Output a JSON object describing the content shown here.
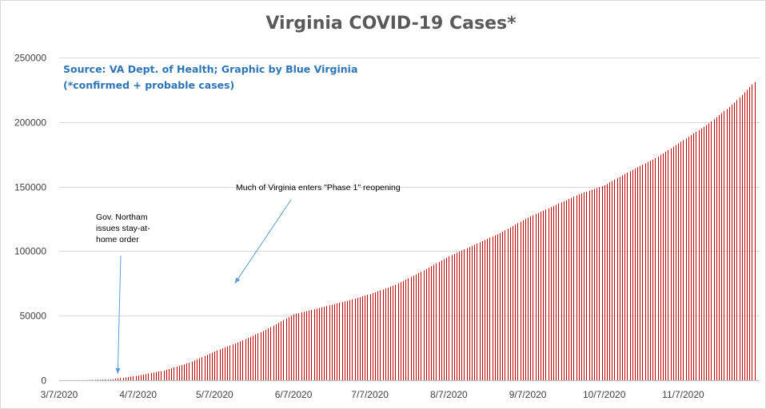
{
  "chart_data": {
    "type": "bar",
    "title": "Virginia COVID-19 Cases*",
    "source_line": "Source: VA Dept. of Health; Graphic by Blue Virginia",
    "note_line": "(*confirmed + probable cases)",
    "xlabel": "",
    "ylabel": "",
    "ylim": [
      0,
      250000
    ],
    "y_ticks": [
      "0",
      "50000",
      "100000",
      "150000",
      "200000",
      "250000"
    ],
    "y_tick_values": [
      0,
      50000,
      100000,
      150000,
      200000,
      250000
    ],
    "x_start": "2020-03-07",
    "x_end": "2020-12-07",
    "x_ticks": [
      "3/7/2020",
      "4/7/2020",
      "5/7/2020",
      "6/7/2020",
      "7/7/2020",
      "8/7/2020",
      "9/7/2020",
      "10/7/2020",
      "11/7/2020"
    ],
    "x_tick_dates": [
      "2020-03-07",
      "2020-04-07",
      "2020-05-07",
      "2020-06-07",
      "2020-07-07",
      "2020-08-07",
      "2020-09-07",
      "2020-10-07",
      "2020-11-07"
    ],
    "grid": true,
    "bar_color": "#c00000",
    "series_points": [
      {
        "date": "2020-03-07",
        "value": 0
      },
      {
        "date": "2020-03-17",
        "value": 100
      },
      {
        "date": "2020-03-27",
        "value": 600
      },
      {
        "date": "2020-04-07",
        "value": 3600
      },
      {
        "date": "2020-04-17",
        "value": 7500
      },
      {
        "date": "2020-04-27",
        "value": 13500
      },
      {
        "date": "2020-05-07",
        "value": 22300
      },
      {
        "date": "2020-05-17",
        "value": 30000
      },
      {
        "date": "2020-05-27",
        "value": 39000
      },
      {
        "date": "2020-06-07",
        "value": 51000
      },
      {
        "date": "2020-06-17",
        "value": 56000
      },
      {
        "date": "2020-06-27",
        "value": 61000
      },
      {
        "date": "2020-07-07",
        "value": 66700
      },
      {
        "date": "2020-07-17",
        "value": 74000
      },
      {
        "date": "2020-07-27",
        "value": 84000
      },
      {
        "date": "2020-08-07",
        "value": 96000
      },
      {
        "date": "2020-08-17",
        "value": 105000
      },
      {
        "date": "2020-08-27",
        "value": 114000
      },
      {
        "date": "2020-09-07",
        "value": 126000
      },
      {
        "date": "2020-09-17",
        "value": 135000
      },
      {
        "date": "2020-09-27",
        "value": 144000
      },
      {
        "date": "2020-10-07",
        "value": 151000
      },
      {
        "date": "2020-10-17",
        "value": 162000
      },
      {
        "date": "2020-10-27",
        "value": 172000
      },
      {
        "date": "2020-11-07",
        "value": 186000
      },
      {
        "date": "2020-11-17",
        "value": 199000
      },
      {
        "date": "2020-11-27",
        "value": 215000
      },
      {
        "date": "2020-12-05",
        "value": 231000
      }
    ],
    "annotations": [
      {
        "lines": [
          "Gov. Northam",
          "issues stay-at-",
          "home order"
        ],
        "target_date": "2020-03-30",
        "target_value": 5000
      },
      {
        "lines": [
          "Much of Virginia enters \"Phase 1\" reopening"
        ],
        "target_date": "2020-05-15",
        "target_value": 75000
      }
    ]
  }
}
